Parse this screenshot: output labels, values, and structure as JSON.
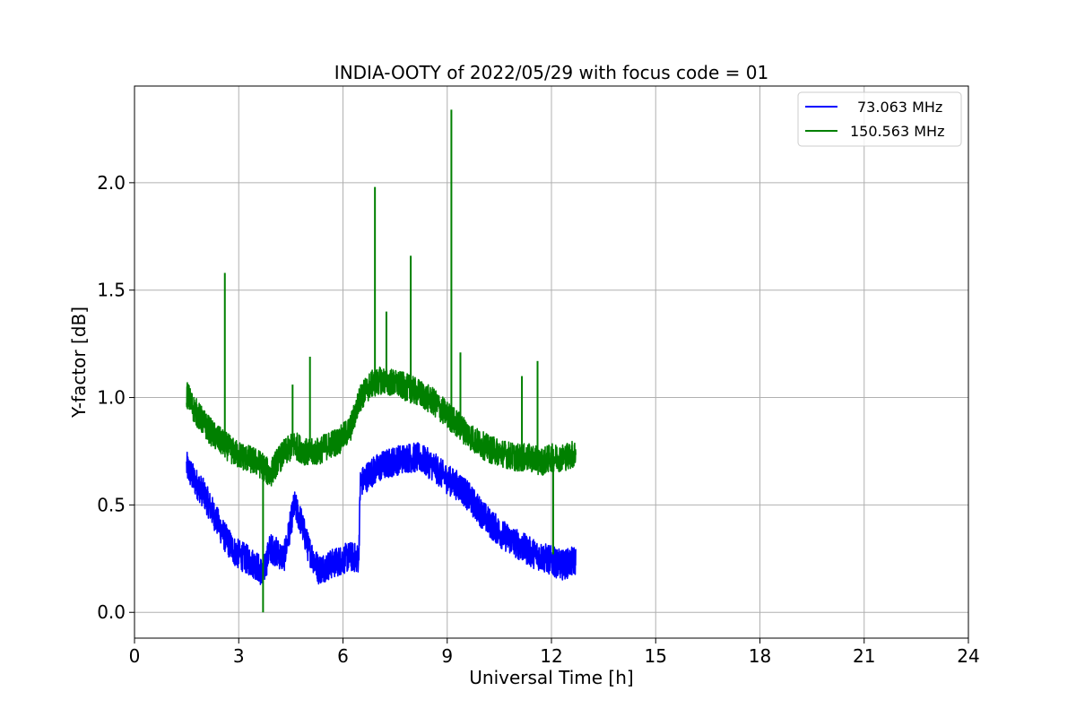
{
  "chart_data": {
    "type": "line",
    "title": "INDIA-OOTY of 2022/05/29 with focus code = 01",
    "xlabel": "Universal Time [h]",
    "ylabel": "Y-factor [dB]",
    "xlim": [
      0,
      24
    ],
    "ylim": [
      -0.12,
      2.45
    ],
    "xticks": [
      0,
      3,
      6,
      9,
      12,
      15,
      18,
      21,
      24
    ],
    "xtick_labels": [
      "0",
      "3",
      "6",
      "9",
      "12",
      "15",
      "18",
      "21",
      "24"
    ],
    "yticks": [
      0.0,
      0.5,
      1.0,
      1.5,
      2.0
    ],
    "ytick_labels": [
      "0.0",
      "0.5",
      "1.0",
      "1.5",
      "2.0"
    ],
    "grid": true,
    "legend_position": "top-right",
    "series": [
      {
        "name": "73.063 MHz",
        "color": "#0000ff",
        "x": [
          1.5,
          1.7,
          2.0,
          2.3,
          2.6,
          2.9,
          3.2,
          3.5,
          3.7,
          3.9,
          4.1,
          4.3,
          4.6,
          4.8,
          5.0,
          5.3,
          5.6,
          5.9,
          6.2,
          6.45,
          6.5,
          6.8,
          7.1,
          7.4,
          7.8,
          8.2,
          8.6,
          9.0,
          9.4,
          9.8,
          10.2,
          10.6,
          11.0,
          11.4,
          11.7,
          12.0,
          12.3,
          12.7
        ],
        "y": [
          0.68,
          0.62,
          0.55,
          0.45,
          0.35,
          0.28,
          0.25,
          0.22,
          0.18,
          0.3,
          0.28,
          0.25,
          0.5,
          0.42,
          0.3,
          0.2,
          0.22,
          0.24,
          0.26,
          0.25,
          0.6,
          0.65,
          0.68,
          0.7,
          0.72,
          0.72,
          0.68,
          0.62,
          0.58,
          0.5,
          0.42,
          0.36,
          0.32,
          0.28,
          0.26,
          0.24,
          0.22,
          0.24
        ]
      },
      {
        "name": "150.563 MHz",
        "color": "#008000",
        "x": [
          1.5,
          1.7,
          2.0,
          2.3,
          2.6,
          2.9,
          3.2,
          3.5,
          3.7,
          3.9,
          4.1,
          4.3,
          4.6,
          4.8,
          5.0,
          5.3,
          5.6,
          5.9,
          6.2,
          6.5,
          6.8,
          7.1,
          7.4,
          7.8,
          8.2,
          8.6,
          9.0,
          9.4,
          9.8,
          10.2,
          10.6,
          11.0,
          11.4,
          11.7,
          12.0,
          12.3,
          12.7
        ],
        "y": [
          1.02,
          0.95,
          0.88,
          0.82,
          0.78,
          0.74,
          0.72,
          0.7,
          0.68,
          0.64,
          0.7,
          0.74,
          0.78,
          0.76,
          0.74,
          0.75,
          0.78,
          0.8,
          0.85,
          1.0,
          1.06,
          1.08,
          1.07,
          1.05,
          1.02,
          0.98,
          0.92,
          0.86,
          0.8,
          0.76,
          0.74,
          0.72,
          0.72,
          0.7,
          0.72,
          0.72,
          0.74
        ]
      }
    ],
    "spikes": [
      {
        "series": 1,
        "x": 2.6,
        "y": 1.58
      },
      {
        "series": 1,
        "x": 6.92,
        "y": 1.98
      },
      {
        "series": 1,
        "x": 7.95,
        "y": 1.66
      },
      {
        "series": 1,
        "x": 9.12,
        "y": 2.34
      },
      {
        "series": 1,
        "x": 5.05,
        "y": 1.19
      },
      {
        "series": 1,
        "x": 4.55,
        "y": 1.06
      },
      {
        "series": 1,
        "x": 7.25,
        "y": 1.4
      },
      {
        "series": 1,
        "x": 9.38,
        "y": 1.21
      },
      {
        "series": 1,
        "x": 11.15,
        "y": 1.1
      },
      {
        "series": 1,
        "x": 11.6,
        "y": 1.17
      },
      {
        "series": 1,
        "x": 3.7,
        "y": 0.0
      },
      {
        "series": 1,
        "x": 12.05,
        "y": 0.27
      }
    ]
  }
}
